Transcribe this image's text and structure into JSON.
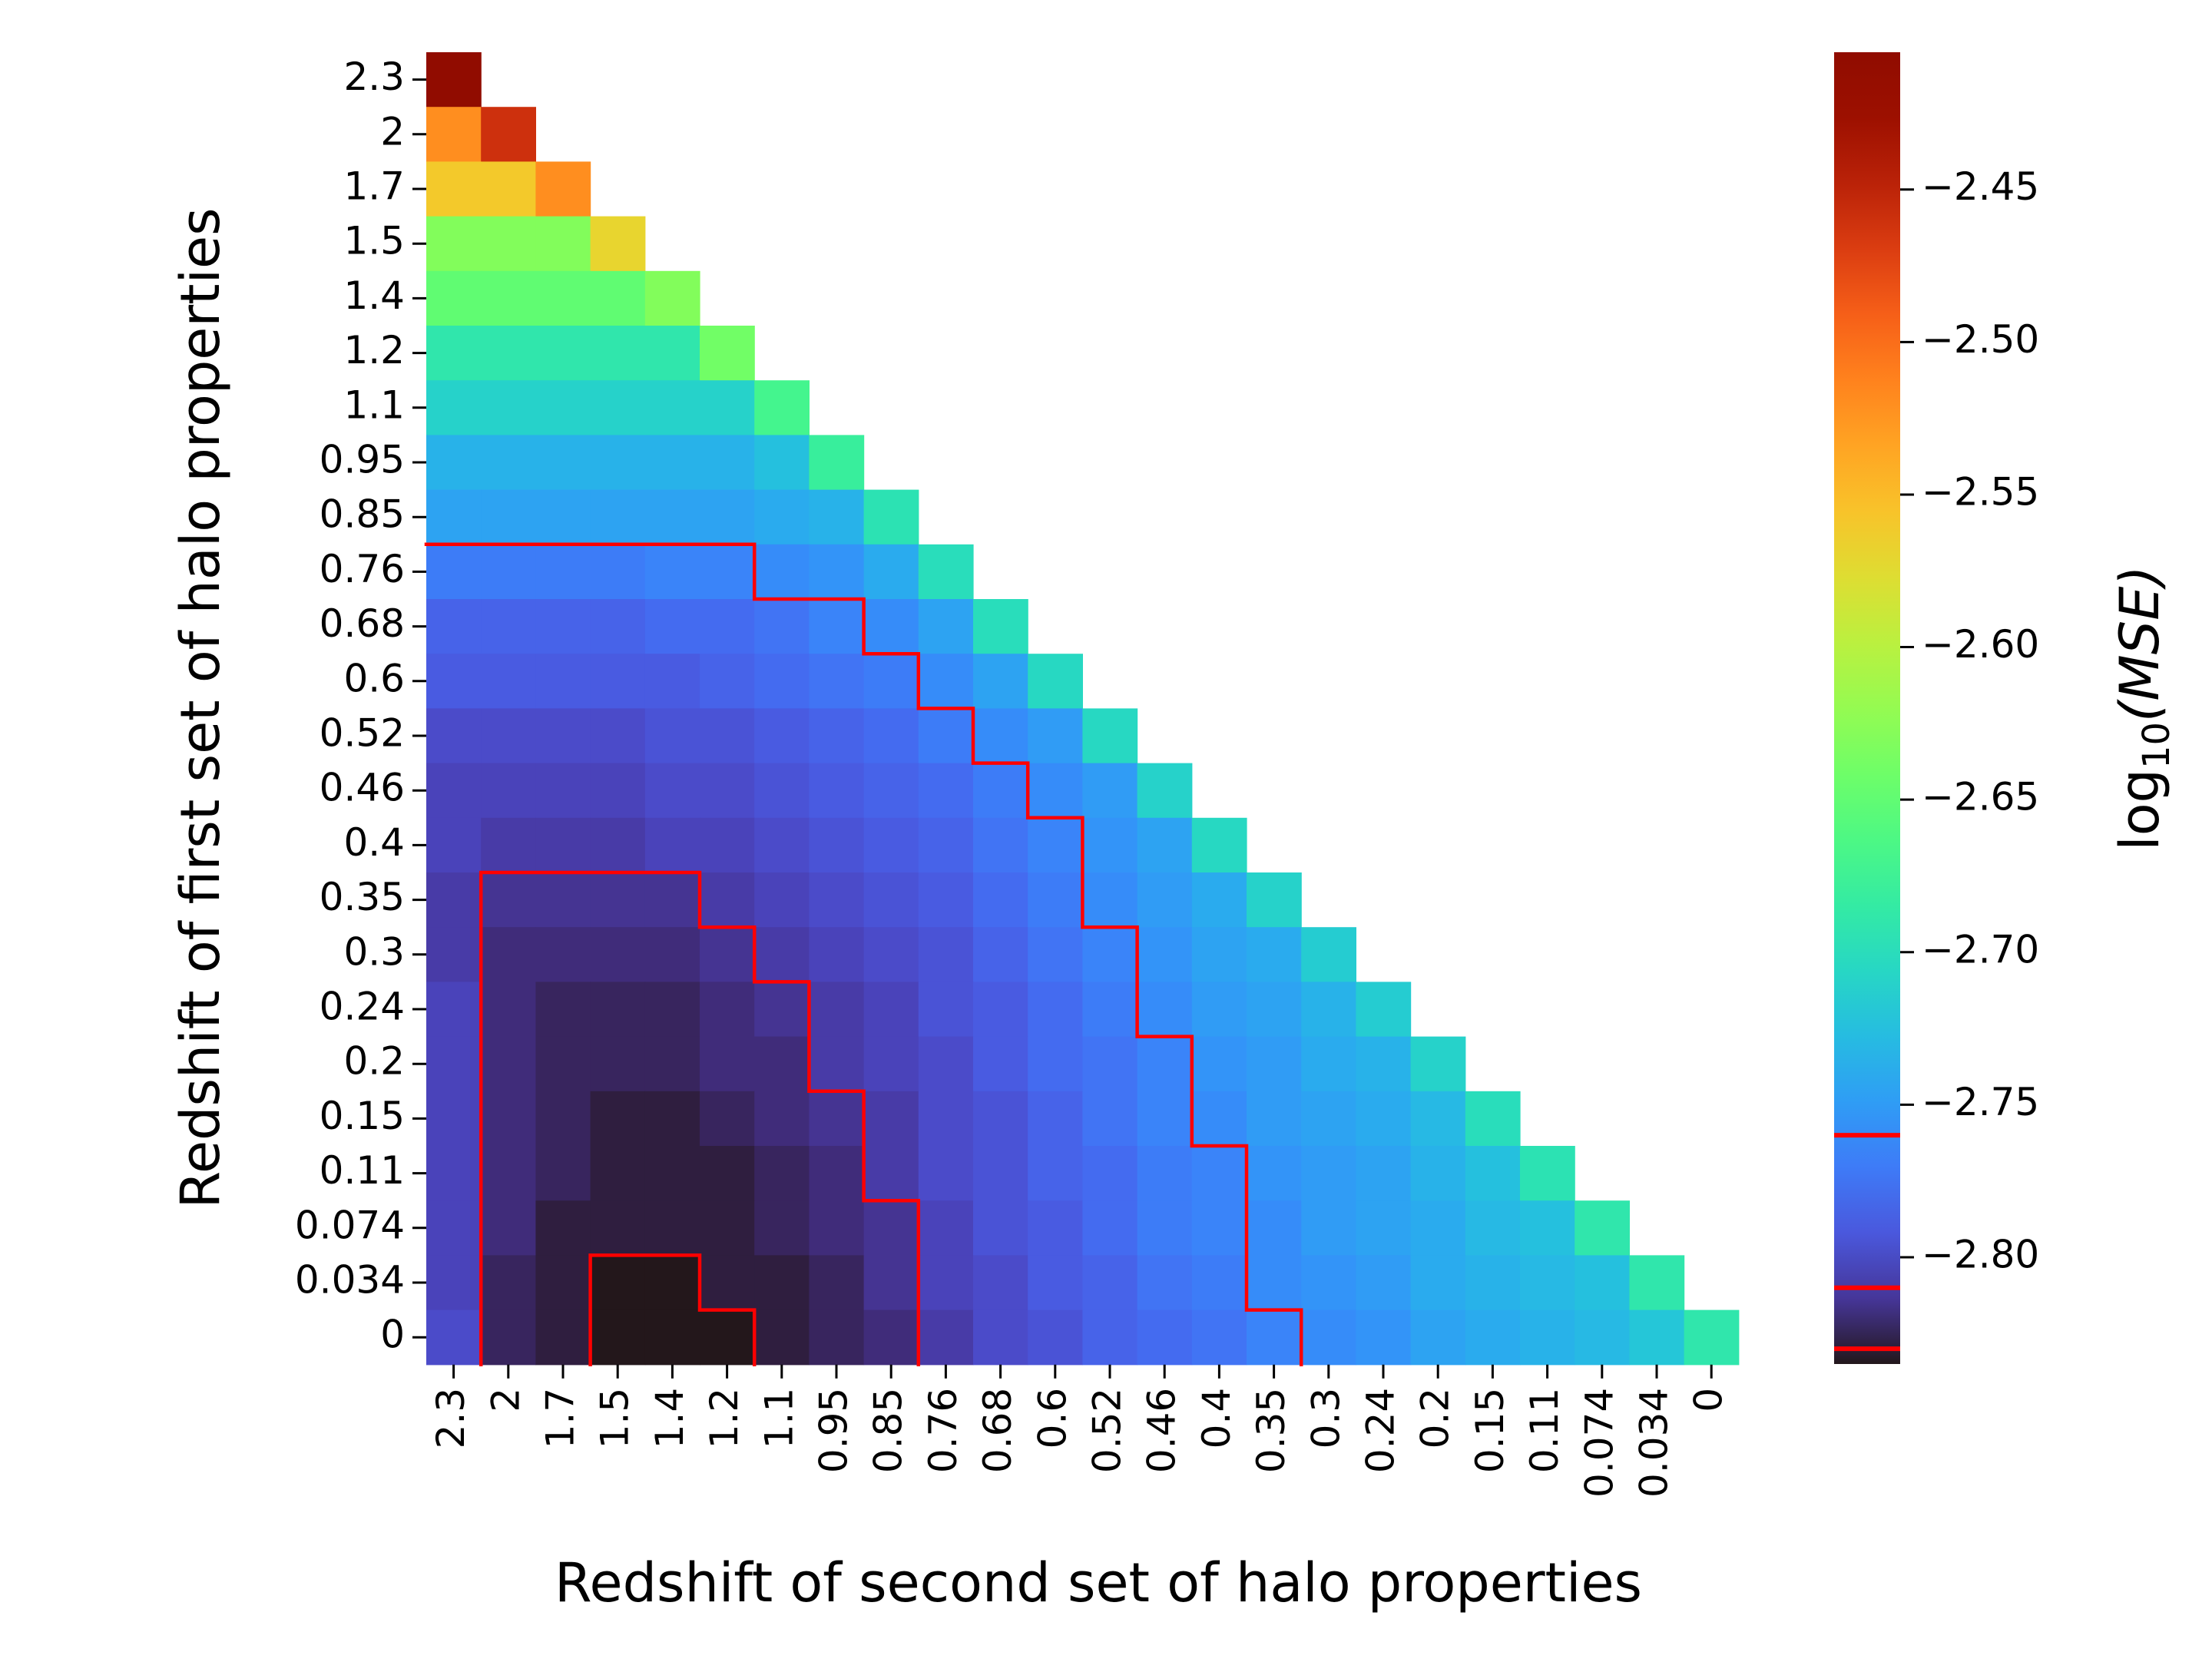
{
  "chart_data": {
    "type": "heatmap",
    "title": "",
    "xlabel": "Redshift of second set of halo properties",
    "ylabel": "Redshift of first set of halo properties",
    "x_categories": [
      "2.3",
      "2",
      "1.7",
      "1.5",
      "1.4",
      "1.2",
      "1.1",
      "0.95",
      "0.85",
      "0.76",
      "0.68",
      "0.6",
      "0.52",
      "0.46",
      "0.4",
      "0.35",
      "0.3",
      "0.24",
      "0.2",
      "0.15",
      "0.11",
      "0.074",
      "0.034",
      "0"
    ],
    "y_categories": [
      "2.3",
      "2",
      "1.7",
      "1.5",
      "1.4",
      "1.2",
      "1.1",
      "0.95",
      "0.85",
      "0.76",
      "0.68",
      "0.6",
      "0.52",
      "0.46",
      "0.4",
      "0.35",
      "0.3",
      "0.24",
      "0.2",
      "0.15",
      "0.11",
      "0.074",
      "0.034",
      "0"
    ],
    "values": [
      [
        -2.41
      ],
      [
        -2.52,
        -2.46
      ],
      [
        -2.56,
        -2.56,
        -2.52
      ],
      [
        -2.63,
        -2.63,
        -2.63,
        -2.57
      ],
      [
        -2.65,
        -2.65,
        -2.65,
        -2.65,
        -2.63
      ],
      [
        -2.69,
        -2.69,
        -2.69,
        -2.69,
        -2.69,
        -2.64
      ],
      [
        -2.71,
        -2.71,
        -2.71,
        -2.71,
        -2.71,
        -2.71,
        -2.67
      ],
      [
        -2.735,
        -2.735,
        -2.735,
        -2.735,
        -2.735,
        -2.735,
        -2.725,
        -2.68
      ],
      [
        -2.745,
        -2.745,
        -2.745,
        -2.745,
        -2.745,
        -2.745,
        -2.74,
        -2.735,
        -2.695
      ],
      [
        -2.77,
        -2.77,
        -2.77,
        -2.77,
        -2.765,
        -2.765,
        -2.76,
        -2.755,
        -2.74,
        -2.7
      ],
      [
        -2.785,
        -2.785,
        -2.785,
        -2.785,
        -2.78,
        -2.78,
        -2.775,
        -2.765,
        -2.76,
        -2.745,
        -2.7
      ],
      [
        -2.79,
        -2.79,
        -2.79,
        -2.79,
        -2.79,
        -2.785,
        -2.78,
        -2.775,
        -2.77,
        -2.76,
        -2.745,
        -2.705
      ],
      [
        -2.8,
        -2.8,
        -2.8,
        -2.8,
        -2.795,
        -2.795,
        -2.79,
        -2.785,
        -2.78,
        -2.77,
        -2.76,
        -2.75,
        -2.705
      ],
      [
        -2.805,
        -2.805,
        -2.805,
        -2.805,
        -2.8,
        -2.8,
        -2.795,
        -2.79,
        -2.785,
        -2.78,
        -2.77,
        -2.76,
        -2.75,
        -2.71
      ],
      [
        -2.805,
        -2.81,
        -2.81,
        -2.81,
        -2.805,
        -2.805,
        -2.8,
        -2.795,
        -2.79,
        -2.785,
        -2.775,
        -2.765,
        -2.755,
        -2.745,
        -2.705
      ],
      [
        -2.81,
        -2.815,
        -2.815,
        -2.815,
        -2.815,
        -2.81,
        -2.805,
        -2.8,
        -2.795,
        -2.79,
        -2.78,
        -2.77,
        -2.76,
        -2.75,
        -2.74,
        -2.71
      ],
      [
        -2.81,
        -2.82,
        -2.82,
        -2.82,
        -2.82,
        -2.815,
        -2.81,
        -2.805,
        -2.8,
        -2.795,
        -2.785,
        -2.775,
        -2.765,
        -2.755,
        -2.745,
        -2.74,
        -2.715
      ],
      [
        -2.805,
        -2.82,
        -2.825,
        -2.825,
        -2.825,
        -2.82,
        -2.815,
        -2.81,
        -2.805,
        -2.795,
        -2.79,
        -2.78,
        -2.77,
        -2.76,
        -2.75,
        -2.745,
        -2.735,
        -2.715
      ],
      [
        -2.805,
        -2.82,
        -2.825,
        -2.825,
        -2.825,
        -2.82,
        -2.82,
        -2.81,
        -2.805,
        -2.8,
        -2.79,
        -2.78,
        -2.775,
        -2.765,
        -2.755,
        -2.75,
        -2.74,
        -2.735,
        -2.71
      ],
      [
        -2.805,
        -2.82,
        -2.825,
        -2.83,
        -2.83,
        -2.825,
        -2.82,
        -2.815,
        -2.81,
        -2.8,
        -2.795,
        -2.785,
        -2.775,
        -2.765,
        -2.76,
        -2.75,
        -2.745,
        -2.74,
        -2.73,
        -2.7
      ],
      [
        -2.805,
        -2.82,
        -2.825,
        -2.83,
        -2.83,
        -2.83,
        -2.825,
        -2.82,
        -2.81,
        -2.8,
        -2.795,
        -2.785,
        -2.78,
        -2.77,
        -2.765,
        -2.755,
        -2.75,
        -2.745,
        -2.735,
        -2.725,
        -2.695
      ],
      [
        -2.805,
        -2.82,
        -2.83,
        -2.83,
        -2.83,
        -2.83,
        -2.825,
        -2.82,
        -2.815,
        -2.805,
        -2.795,
        -2.79,
        -2.78,
        -2.77,
        -2.765,
        -2.76,
        -2.75,
        -2.745,
        -2.74,
        -2.73,
        -2.725,
        -2.69
      ],
      [
        -2.805,
        -2.825,
        -2.83,
        -2.835,
        -2.835,
        -2.83,
        -2.83,
        -2.825,
        -2.815,
        -2.805,
        -2.8,
        -2.79,
        -2.785,
        -2.775,
        -2.77,
        -2.76,
        -2.755,
        -2.75,
        -2.74,
        -2.735,
        -2.73,
        -2.725,
        -2.69
      ],
      [
        -2.8,
        -2.825,
        -2.83,
        -2.835,
        -2.835,
        -2.835,
        -2.83,
        -2.825,
        -2.82,
        -2.81,
        -2.8,
        -2.795,
        -2.785,
        -2.78,
        -2.775,
        -2.765,
        -2.76,
        -2.755,
        -2.745,
        -2.74,
        -2.735,
        -2.73,
        -2.72,
        -2.69
      ]
    ],
    "colormap": "turbo",
    "vmin": -2.835,
    "vmax": -2.405,
    "colorbar": {
      "label_prefix": "log",
      "label_subscript": "10",
      "label_body": "(MSE)",
      "ticks": [
        -2.45,
        -2.5,
        -2.55,
        -2.6,
        -2.65,
        -2.7,
        -2.75,
        -2.8
      ],
      "tick_labels": [
        "−2.45",
        "−2.50",
        "−2.55",
        "−2.60",
        "−2.65",
        "−2.70",
        "−2.75",
        "−2.80"
      ],
      "contour_levels": [
        -2.76,
        -2.81,
        -2.83
      ]
    },
    "contour_color": "#ff0000",
    "contours_note_removed": true
  }
}
